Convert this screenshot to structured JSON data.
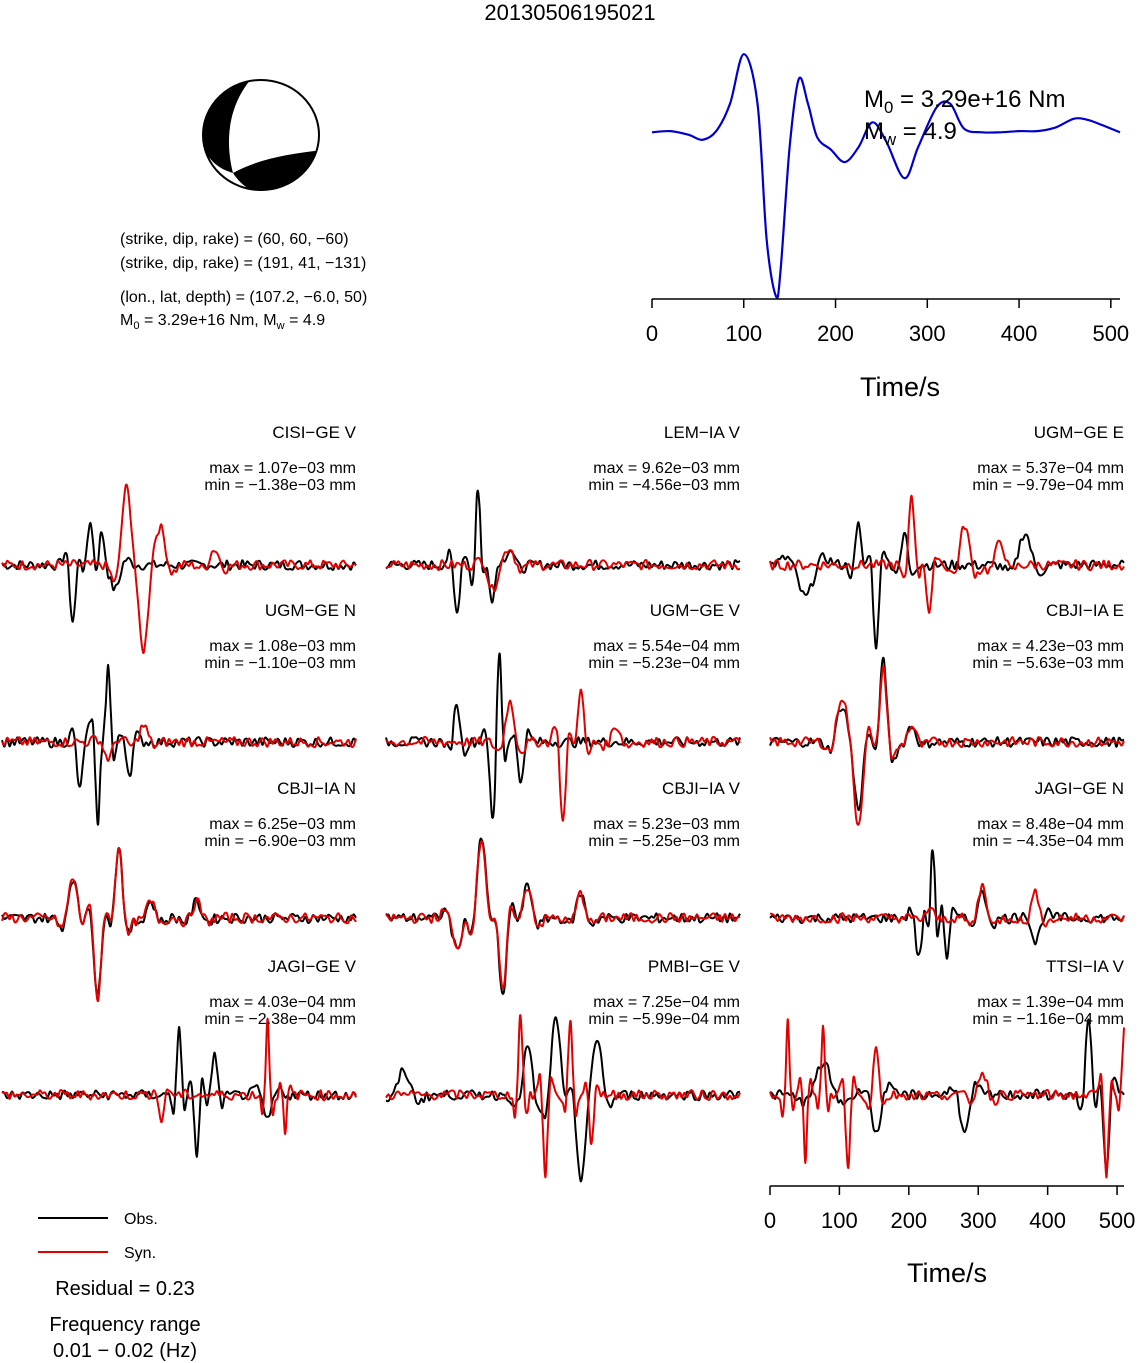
{
  "title": "20130506195021",
  "mechanism": {
    "plane1": "(strike, dip, rake) = (60, 60, −60)",
    "plane2": "(strike, dip, rake) = (191, 41, −131)",
    "location": "(lon., lat, depth) = (107.2, −6.0, 50)",
    "moment_line": "M0 = 3.29e+16 Nm, Mw = 4.9",
    "m0_prefix": "M",
    "m0_sub": "0",
    "m0_value": " = 3.29e+16 Nm, M",
    "mw_sub": "w",
    "mw_value": " = 4.9",
    "colors": {
      "compression": "#000000",
      "dilatation": "#ffffff"
    }
  },
  "source_function": {
    "m0_text": "M0 = 3.29e+16 Nm",
    "m0_prefix": "M",
    "m0_sub": "0",
    "m0_value": " = 3.29e+16 Nm",
    "mw_text": "Mw = 4.9",
    "mw_prefix": "M",
    "mw_sub": "w",
    "mw_value": " = 4.9",
    "xlabel": "Time/s",
    "xticks": [
      0,
      100,
      200,
      300,
      400,
      500
    ],
    "color": "#0000cc"
  },
  "chart_data": {
    "type": "line",
    "title": "20130506195021",
    "source_time_function": {
      "x": [
        0,
        20,
        40,
        55,
        70,
        85,
        100,
        115,
        125,
        135,
        140,
        150,
        160,
        170,
        180,
        195,
        210,
        225,
        240,
        255,
        275,
        290,
        310,
        325,
        340,
        360,
        380,
        400,
        420,
        440,
        460,
        475,
        490,
        510
      ],
      "values": [
        0.32,
        0.33,
        0.3,
        0.26,
        0.33,
        0.55,
        0.95,
        0.55,
        -0.55,
        -1.0,
        -0.8,
        0.2,
        0.75,
        0.55,
        0.28,
        0.18,
        0.08,
        0.2,
        0.4,
        0.25,
        -0.05,
        0.2,
        0.52,
        0.55,
        0.35,
        0.32,
        0.32,
        0.33,
        0.33,
        0.36,
        0.43,
        0.42,
        0.38,
        0.32
      ],
      "xlabel": "Time/s",
      "xlim": [
        0,
        510
      ]
    },
    "stations": [
      {
        "label": "CISI−GE V",
        "max": "max = 1.07e−03 mm",
        "min": "min = −1.38e−03 mm"
      },
      {
        "label": "LEM−IA V",
        "max": "max = 9.62e−03 mm",
        "min": "min = −4.56e−03 mm"
      },
      {
        "label": "UGM−GE E",
        "max": "max = 5.37e−04 mm",
        "min": "min = −9.79e−04 mm"
      },
      {
        "label": "UGM−GE N",
        "max": "max = 1.08e−03 mm",
        "min": "min = −1.10e−03 mm"
      },
      {
        "label": "UGM−GE V",
        "max": "max = 5.54e−04 mm",
        "min": "min = −5.23e−04 mm"
      },
      {
        "label": "CBJI−IA E",
        "max": "max = 4.23e−03 mm",
        "min": "min = −5.63e−03 mm"
      },
      {
        "label": "CBJI−IA N",
        "max": "max = 6.25e−03 mm",
        "min": "min = −6.90e−03 mm"
      },
      {
        "label": "CBJI−IA V",
        "max": "max = 5.23e−03 mm",
        "min": "min = −5.25e−03 mm"
      },
      {
        "label": "JAGI−GE N",
        "max": "max = 8.48e−04 mm",
        "min": "min = −4.35e−04 mm"
      },
      {
        "label": "JAGI−GE V",
        "max": "max = 4.03e−04 mm",
        "min": "min = −2.38e−04 mm"
      },
      {
        "label": "PMBI−GE V",
        "max": "max = 7.25e−04 mm",
        "min": "min = −5.99e−04 mm"
      },
      {
        "label": "TTSI−IA V",
        "max": "max = 1.39e−04 mm",
        "min": "min = −1.16e−04 mm"
      }
    ],
    "waveform_xlabel": "Time/s",
    "waveform_xticks": [
      0,
      100,
      200,
      300,
      400,
      500
    ],
    "waveform_xlim": [
      0,
      510
    ],
    "series": [
      {
        "name": "Obs.",
        "color": "#000000"
      },
      {
        "name": "Syn.",
        "color": "#e00000"
      }
    ]
  },
  "legend": {
    "obs": "Obs.",
    "syn": "Syn."
  },
  "residual": "Residual = 0.23",
  "frequency_label": "Frequency range",
  "frequency_value": "0.01 − 0.02 (Hz)"
}
